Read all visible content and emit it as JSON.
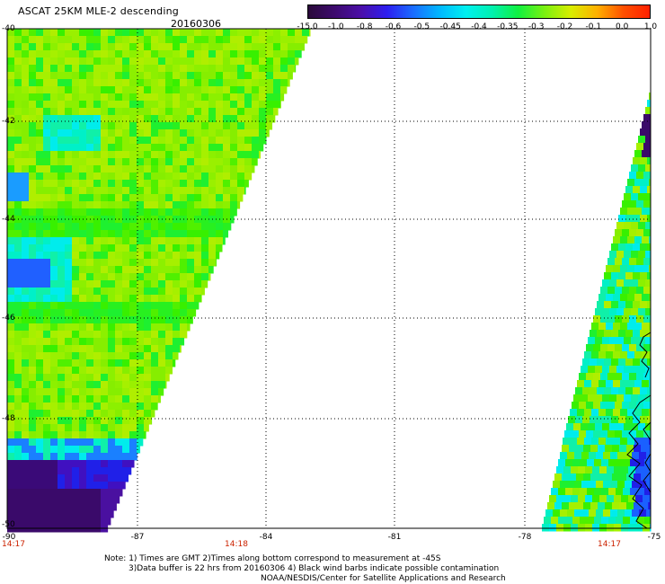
{
  "header": {
    "title": "ASCAT 25KM MLE-2 descending",
    "date": "20160306"
  },
  "colorbar": {
    "labels": [
      "-15.0",
      "-1.0",
      "-0.8",
      "-0.6",
      "-0.5",
      "-0.45",
      "-0.4",
      "-0.35",
      "-0.3",
      "-0.2",
      "-0.1",
      "0.0",
      "1.0"
    ],
    "colors": [
      "#2a0a3a",
      "#3d0a6e",
      "#4b0fa8",
      "#2d1ef0",
      "#1a6dff",
      "#00b8ff",
      "#00f0f0",
      "#00f0b0",
      "#10f040",
      "#7af010",
      "#d8ee00",
      "#ffb000",
      "#ff5000",
      "#ff2000"
    ]
  },
  "map": {
    "lon_range": [
      -90,
      -75
    ],
    "lat_range": [
      -50,
      -40
    ],
    "lat_ticks": [
      "-40",
      "-42",
      "-44",
      "-46",
      "-48",
      "-50"
    ],
    "lon_ticks": [
      "-90",
      "-87",
      "-84",
      "-81",
      "-78",
      "-75"
    ],
    "pass_times": [
      "14:17",
      "14:18",
      "14:17"
    ]
  },
  "notes": {
    "line1": "Note: 1) Times are GMT 2)Times along bottom correspond to measurement at -45S",
    "line2": "3)Data buffer is 22 hrs from 20160306 4) Black wind barbs indicate possible contamination",
    "line3": "NOAA/NESDIS/Center for Satellite Applications and Research"
  }
}
